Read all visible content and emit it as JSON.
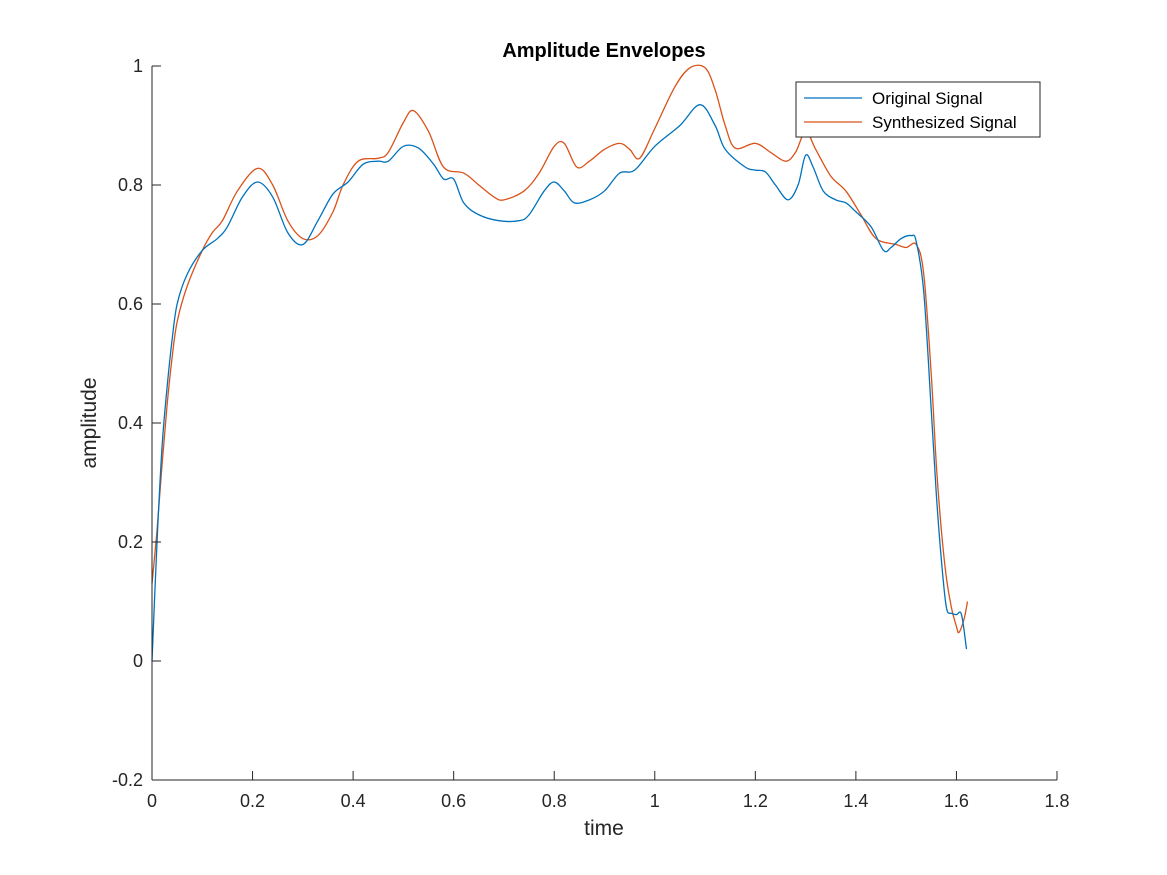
{
  "chart_data": {
    "type": "line",
    "title": "Amplitude Envelopes",
    "xlabel": "time",
    "ylabel": "amplitude",
    "xlim": [
      0,
      1.8
    ],
    "ylim": [
      -0.2,
      1
    ],
    "xticks": [
      0,
      0.2,
      0.4,
      0.6,
      0.8,
      1,
      1.2,
      1.4,
      1.6,
      1.8
    ],
    "xtick_labels": [
      "0",
      "0.2",
      "0.4",
      "0.6",
      "0.8",
      "1",
      "1.2",
      "1.4",
      "1.6",
      "1.8"
    ],
    "yticks": [
      -0.2,
      0,
      0.2,
      0.4,
      0.6,
      0.8,
      1
    ],
    "ytick_labels": [
      "-0.2",
      "0",
      "0.2",
      "0.4",
      "0.6",
      "0.8",
      "1"
    ],
    "grid": false,
    "legend_position": "top-right",
    "series": [
      {
        "name": "Original Signal",
        "color": "#0072bd",
        "points": [
          [
            0.0,
            0.0
          ],
          [
            0.01,
            0.2
          ],
          [
            0.02,
            0.36
          ],
          [
            0.03,
            0.46
          ],
          [
            0.04,
            0.54
          ],
          [
            0.05,
            0.6
          ],
          [
            0.07,
            0.65
          ],
          [
            0.1,
            0.69
          ],
          [
            0.13,
            0.71
          ],
          [
            0.15,
            0.73
          ],
          [
            0.18,
            0.78
          ],
          [
            0.21,
            0.805
          ],
          [
            0.24,
            0.78
          ],
          [
            0.27,
            0.72
          ],
          [
            0.3,
            0.7
          ],
          [
            0.33,
            0.74
          ],
          [
            0.36,
            0.785
          ],
          [
            0.39,
            0.805
          ],
          [
            0.42,
            0.835
          ],
          [
            0.45,
            0.84
          ],
          [
            0.47,
            0.84
          ],
          [
            0.5,
            0.865
          ],
          [
            0.53,
            0.862
          ],
          [
            0.56,
            0.835
          ],
          [
            0.58,
            0.81
          ],
          [
            0.6,
            0.81
          ],
          [
            0.62,
            0.77
          ],
          [
            0.65,
            0.75
          ],
          [
            0.69,
            0.74
          ],
          [
            0.73,
            0.74
          ],
          [
            0.75,
            0.75
          ],
          [
            0.78,
            0.79
          ],
          [
            0.8,
            0.805
          ],
          [
            0.82,
            0.79
          ],
          [
            0.84,
            0.77
          ],
          [
            0.87,
            0.775
          ],
          [
            0.9,
            0.79
          ],
          [
            0.93,
            0.82
          ],
          [
            0.96,
            0.825
          ],
          [
            1.0,
            0.865
          ],
          [
            1.05,
            0.9
          ],
          [
            1.09,
            0.935
          ],
          [
            1.12,
            0.9
          ],
          [
            1.14,
            0.86
          ],
          [
            1.18,
            0.83
          ],
          [
            1.2,
            0.825
          ],
          [
            1.22,
            0.822
          ],
          [
            1.24,
            0.8
          ],
          [
            1.265,
            0.775
          ],
          [
            1.285,
            0.8
          ],
          [
            1.3,
            0.85
          ],
          [
            1.315,
            0.83
          ],
          [
            1.335,
            0.79
          ],
          [
            1.36,
            0.775
          ],
          [
            1.38,
            0.77
          ],
          [
            1.4,
            0.755
          ],
          [
            1.43,
            0.73
          ],
          [
            1.455,
            0.69
          ],
          [
            1.47,
            0.695
          ],
          [
            1.49,
            0.71
          ],
          [
            1.51,
            0.715
          ],
          [
            1.52,
            0.705
          ],
          [
            1.535,
            0.62
          ],
          [
            1.55,
            0.42
          ],
          [
            1.56,
            0.28
          ],
          [
            1.57,
            0.17
          ],
          [
            1.58,
            0.09
          ],
          [
            1.59,
            0.08
          ],
          [
            1.6,
            0.078
          ],
          [
            1.61,
            0.078
          ],
          [
            1.62,
            0.02
          ]
        ]
      },
      {
        "name": "Synthesized Signal",
        "color": "#d95319",
        "points": [
          [
            0.0,
            0.13
          ],
          [
            0.01,
            0.22
          ],
          [
            0.02,
            0.33
          ],
          [
            0.03,
            0.43
          ],
          [
            0.04,
            0.51
          ],
          [
            0.05,
            0.57
          ],
          [
            0.07,
            0.63
          ],
          [
            0.1,
            0.69
          ],
          [
            0.12,
            0.72
          ],
          [
            0.14,
            0.74
          ],
          [
            0.17,
            0.79
          ],
          [
            0.21,
            0.828
          ],
          [
            0.24,
            0.8
          ],
          [
            0.27,
            0.74
          ],
          [
            0.3,
            0.71
          ],
          [
            0.33,
            0.715
          ],
          [
            0.36,
            0.755
          ],
          [
            0.38,
            0.8
          ],
          [
            0.41,
            0.84
          ],
          [
            0.45,
            0.845
          ],
          [
            0.47,
            0.855
          ],
          [
            0.5,
            0.905
          ],
          [
            0.52,
            0.925
          ],
          [
            0.55,
            0.89
          ],
          [
            0.58,
            0.83
          ],
          [
            0.62,
            0.82
          ],
          [
            0.65,
            0.8
          ],
          [
            0.68,
            0.78
          ],
          [
            0.7,
            0.775
          ],
          [
            0.74,
            0.79
          ],
          [
            0.77,
            0.82
          ],
          [
            0.8,
            0.865
          ],
          [
            0.82,
            0.87
          ],
          [
            0.845,
            0.83
          ],
          [
            0.87,
            0.84
          ],
          [
            0.9,
            0.86
          ],
          [
            0.93,
            0.87
          ],
          [
            0.95,
            0.86
          ],
          [
            0.97,
            0.845
          ],
          [
            1.0,
            0.895
          ],
          [
            1.04,
            0.965
          ],
          [
            1.07,
            0.997
          ],
          [
            1.1,
            0.997
          ],
          [
            1.12,
            0.96
          ],
          [
            1.14,
            0.9
          ],
          [
            1.16,
            0.862
          ],
          [
            1.2,
            0.87
          ],
          [
            1.23,
            0.855
          ],
          [
            1.26,
            0.84
          ],
          [
            1.28,
            0.855
          ],
          [
            1.3,
            0.89
          ],
          [
            1.32,
            0.86
          ],
          [
            1.35,
            0.815
          ],
          [
            1.38,
            0.79
          ],
          [
            1.41,
            0.75
          ],
          [
            1.44,
            0.71
          ],
          [
            1.48,
            0.7
          ],
          [
            1.5,
            0.695
          ],
          [
            1.52,
            0.7
          ],
          [
            1.535,
            0.65
          ],
          [
            1.55,
            0.48
          ],
          [
            1.56,
            0.33
          ],
          [
            1.57,
            0.22
          ],
          [
            1.58,
            0.14
          ],
          [
            1.59,
            0.09
          ],
          [
            1.6,
            0.058
          ],
          [
            1.605,
            0.048
          ],
          [
            1.615,
            0.07
          ],
          [
            1.622,
            0.1
          ]
        ]
      }
    ]
  }
}
